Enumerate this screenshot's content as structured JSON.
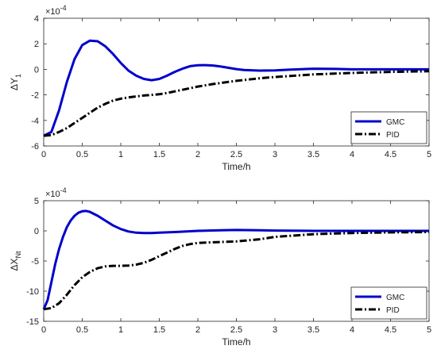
{
  "chart_data": [
    {
      "type": "line",
      "title": "",
      "xlabel": "Time/h",
      "ylabel_main": "ΔY",
      "ylabel_sub": "1",
      "multiplier_base": "×10",
      "multiplier_exp": "-4",
      "xlim": [
        0,
        5
      ],
      "ylim": [
        -6,
        4
      ],
      "xticks": [
        0,
        0.5,
        1,
        1.5,
        2,
        2.5,
        3,
        3.5,
        4,
        4.5,
        5
      ],
      "xtick_labels": [
        "0",
        "0.5",
        "1",
        "1.5",
        "2",
        "2.5",
        "3",
        "3.5",
        "4",
        "4.5",
        "5"
      ],
      "yticks": [
        -6,
        -4,
        -2,
        0,
        2,
        4
      ],
      "ytick_labels": [
        "-6",
        "-4",
        "-2",
        "0",
        "2",
        "4"
      ],
      "grid": false,
      "legend_position": "bottom-right",
      "series": [
        {
          "name": "GMC",
          "color": "#0000cc",
          "style": "solid",
          "x": [
            0,
            0.1,
            0.2,
            0.3,
            0.4,
            0.5,
            0.6,
            0.7,
            0.8,
            0.9,
            1.0,
            1.1,
            1.2,
            1.3,
            1.4,
            1.5,
            1.6,
            1.7,
            1.8,
            1.9,
            2.0,
            2.1,
            2.2,
            2.3,
            2.4,
            2.5,
            2.6,
            2.8,
            3.0,
            3.2,
            3.5,
            3.8,
            4.0,
            4.5,
            5.0
          ],
          "y": [
            -5.2,
            -4.9,
            -3.2,
            -1.0,
            0.8,
            1.9,
            2.25,
            2.2,
            1.8,
            1.2,
            0.5,
            -0.1,
            -0.5,
            -0.75,
            -0.85,
            -0.75,
            -0.5,
            -0.2,
            0.05,
            0.25,
            0.32,
            0.33,
            0.3,
            0.22,
            0.12,
            0.02,
            -0.05,
            -0.1,
            -0.08,
            -0.02,
            0.05,
            0.03,
            0.0,
            0.0,
            0.0
          ]
        },
        {
          "name": "PID",
          "color": "#000000",
          "style": "dashdot",
          "x": [
            0,
            0.1,
            0.2,
            0.3,
            0.4,
            0.5,
            0.6,
            0.7,
            0.8,
            0.9,
            1.0,
            1.1,
            1.2,
            1.3,
            1.4,
            1.5,
            1.6,
            1.8,
            2.0,
            2.2,
            2.5,
            2.8,
            3.0,
            3.5,
            4.0,
            4.5,
            5.0
          ],
          "y": [
            -5.2,
            -5.15,
            -4.9,
            -4.6,
            -4.2,
            -3.8,
            -3.4,
            -3.0,
            -2.7,
            -2.45,
            -2.3,
            -2.2,
            -2.12,
            -2.05,
            -2.0,
            -1.95,
            -1.85,
            -1.6,
            -1.35,
            -1.15,
            -0.9,
            -0.7,
            -0.6,
            -0.4,
            -0.28,
            -0.2,
            -0.15
          ]
        }
      ]
    },
    {
      "type": "line",
      "title": "",
      "xlabel": "Time/h",
      "ylabel_main": "ΔX",
      "ylabel_sub": "Nt",
      "multiplier_base": "×10",
      "multiplier_exp": "-4",
      "xlim": [
        0,
        5
      ],
      "ylim": [
        -15,
        5
      ],
      "xticks": [
        0,
        0.5,
        1,
        1.5,
        2,
        2.5,
        3,
        3.5,
        4,
        4.5,
        5
      ],
      "xtick_labels": [
        "0",
        "0.5",
        "1",
        "1.5",
        "2",
        "2.5",
        "3",
        "3.5",
        "4",
        "4.5",
        "5"
      ],
      "yticks": [
        -15,
        -10,
        -5,
        0,
        5
      ],
      "ytick_labels": [
        "-15",
        "-10",
        "-5",
        "0",
        "5"
      ],
      "grid": false,
      "legend_position": "bottom-right",
      "series": [
        {
          "name": "GMC",
          "color": "#0000cc",
          "style": "solid",
          "x": [
            0,
            0.05,
            0.1,
            0.15,
            0.2,
            0.25,
            0.3,
            0.35,
            0.4,
            0.45,
            0.5,
            0.55,
            0.6,
            0.7,
            0.8,
            0.9,
            1.0,
            1.1,
            1.2,
            1.3,
            1.4,
            1.5,
            1.7,
            2.0,
            2.3,
            2.5,
            2.8,
            3.0,
            3.5,
            4.0,
            4.5,
            5.0
          ],
          "y": [
            -13,
            -11.5,
            -8.5,
            -5.5,
            -3.0,
            -1.0,
            0.6,
            1.7,
            2.5,
            3.0,
            3.25,
            3.3,
            3.15,
            2.5,
            1.7,
            0.9,
            0.3,
            -0.1,
            -0.3,
            -0.35,
            -0.35,
            -0.3,
            -0.2,
            0.0,
            0.1,
            0.15,
            0.1,
            0.05,
            0.0,
            0.0,
            0.0,
            0.0
          ]
        },
        {
          "name": "PID",
          "color": "#000000",
          "style": "dashdot",
          "x": [
            0,
            0.1,
            0.2,
            0.3,
            0.4,
            0.5,
            0.6,
            0.7,
            0.8,
            0.9,
            1.0,
            1.1,
            1.2,
            1.3,
            1.4,
            1.5,
            1.6,
            1.7,
            1.8,
            1.9,
            2.0,
            2.2,
            2.5,
            2.8,
            3.0,
            3.5,
            4.0,
            4.5,
            5.0
          ],
          "y": [
            -13,
            -12.8,
            -12.0,
            -10.6,
            -9.0,
            -7.7,
            -6.8,
            -6.2,
            -5.9,
            -5.8,
            -5.8,
            -5.75,
            -5.6,
            -5.3,
            -4.8,
            -4.2,
            -3.6,
            -3.0,
            -2.5,
            -2.2,
            -2.0,
            -1.9,
            -1.75,
            -1.4,
            -1.0,
            -0.55,
            -0.35,
            -0.25,
            -0.2
          ]
        }
      ]
    }
  ]
}
